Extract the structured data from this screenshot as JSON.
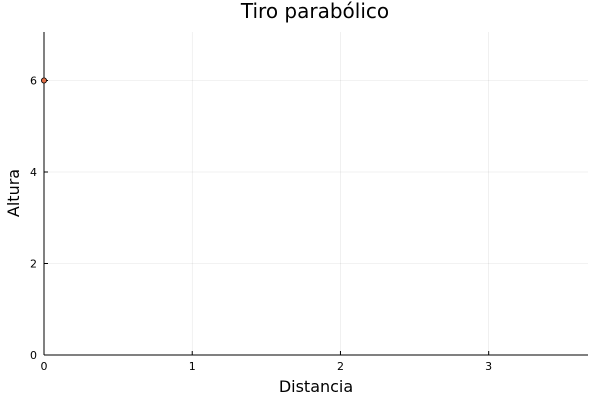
{
  "chart_data": {
    "type": "scatter",
    "title": "Tiro parabólico",
    "xlabel": "Distancia",
    "ylabel": "Altura",
    "xlim": [
      0,
      3.67
    ],
    "ylim": [
      0,
      7.06
    ],
    "xticks": [
      0,
      1,
      2,
      3
    ],
    "yticks": [
      0,
      2,
      4,
      6
    ],
    "grid": true,
    "legend": "none",
    "series": [
      {
        "points": [
          {
            "x": 0,
            "y": 6
          }
        ],
        "color": "#e26f46",
        "edge_color": "#000000"
      }
    ]
  }
}
